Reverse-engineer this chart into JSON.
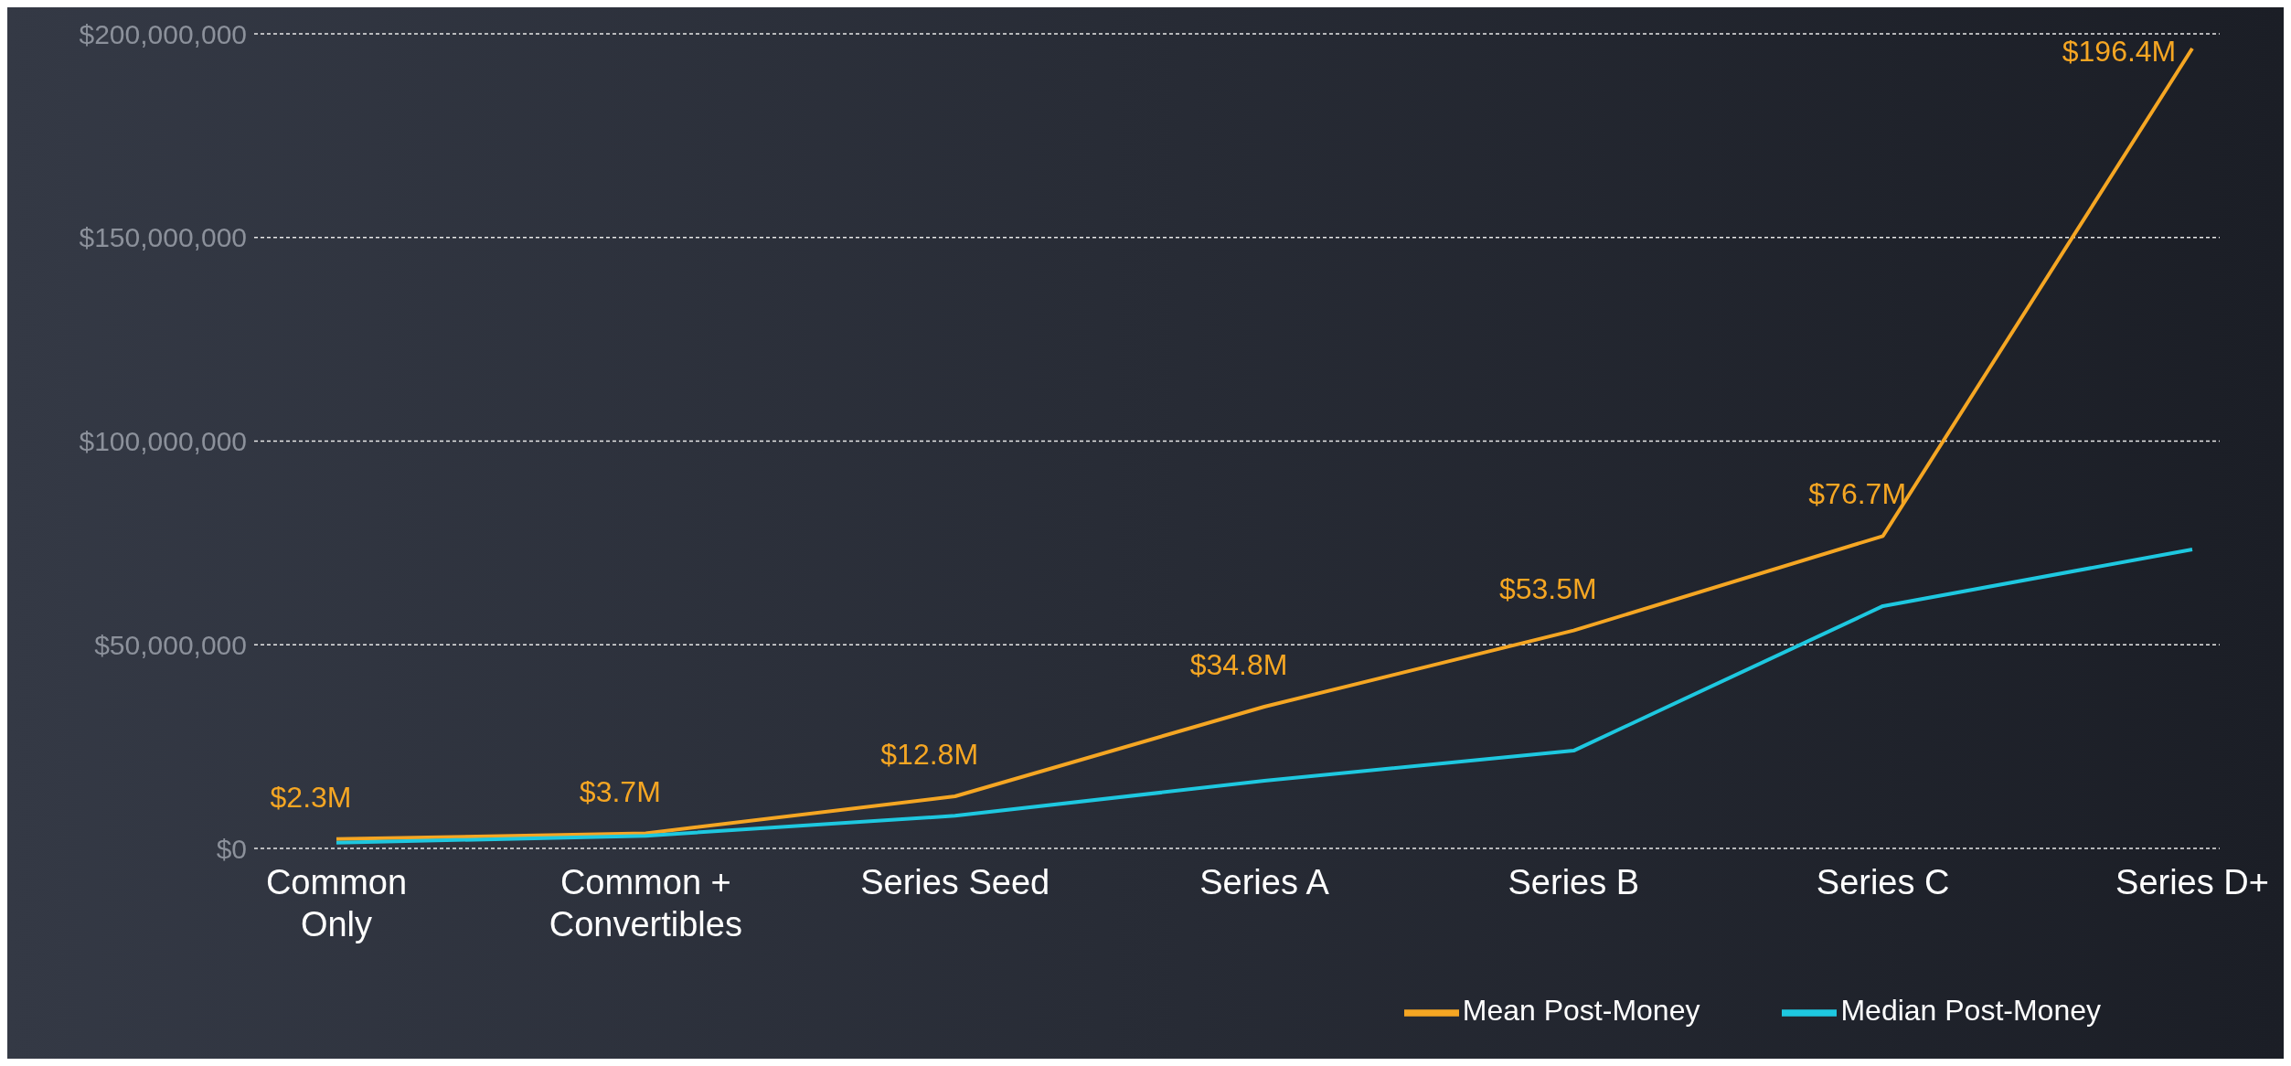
{
  "chart_data": {
    "type": "line",
    "categories": [
      "Common\nOnly",
      "Common +\nConvertibles",
      "Series Seed",
      "Series A",
      "Series B",
      "Series C",
      "Series D+"
    ],
    "series": [
      {
        "name": "Mean Post-Money",
        "color": "#f5a623",
        "values": [
          2300000,
          3700000,
          12800000,
          34800000,
          53500000,
          76700000,
          196400000
        ],
        "value_labels": [
          "$2.3M",
          "$3.7M",
          "$12.8M",
          "$34.8M",
          "$53.5M",
          "$76.7M",
          "$196.4M"
        ]
      },
      {
        "name": "Median Post-Money",
        "color": "#1ec8e0",
        "values": [
          1400000,
          3100000,
          8000000,
          16600000,
          24000000,
          59500000,
          73400000
        ]
      }
    ],
    "ylim": [
      0,
      200000000
    ],
    "yticks": [
      {
        "value": 0,
        "label": "$0"
      },
      {
        "value": 50000000,
        "label": "$50,000,000"
      },
      {
        "value": 100000000,
        "label": "$100,000,000"
      },
      {
        "value": 150000000,
        "label": "$150,000,000"
      },
      {
        "value": 200000000,
        "label": "$200,000,000"
      }
    ],
    "grid": "y",
    "legend": "bottom right",
    "marker": "none",
    "line_style": "solid"
  }
}
